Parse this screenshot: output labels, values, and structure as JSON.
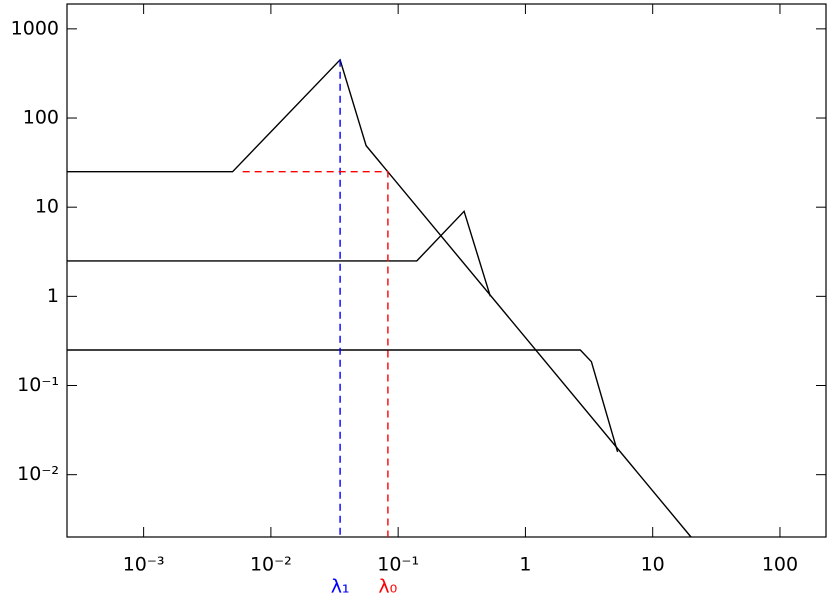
{
  "chart_data": {
    "type": "line",
    "xlog": true,
    "ylog": true,
    "xlim": [
      0.00025,
      230
    ],
    "ylim": [
      0.002,
      1900
    ],
    "xticks": [
      {
        "value": 0.001,
        "label": "10⁻³"
      },
      {
        "value": 0.01,
        "label": "10⁻²"
      },
      {
        "value": 0.1,
        "label": "10⁻¹"
      },
      1,
      10,
      100
    ],
    "yticks": [
      {
        "value": 0.01,
        "label": "10⁻²"
      },
      {
        "value": 0.1,
        "label": "10⁻¹"
      },
      1,
      10,
      100,
      1000
    ],
    "series": [
      {
        "color": "#000000",
        "dash": false,
        "x": [
          0.00025,
          0.005,
          0.035,
          0.056,
          20
        ],
        "values": [
          25,
          25,
          450,
          49,
          0.002
        ]
      },
      {
        "color": "#000000",
        "dash": false,
        "x": [
          0.00025,
          0.14,
          0.33,
          0.53
        ],
        "values": [
          2.5,
          2.5,
          9,
          1
        ]
      },
      {
        "color": "#000000",
        "dash": false,
        "x": [
          0.00025,
          2.7,
          3.3,
          5.3
        ],
        "values": [
          0.25,
          0.25,
          0.185,
          0.018
        ]
      },
      {
        "color": "#0000ff",
        "dash": true,
        "x": [
          0.035,
          0.035
        ],
        "values": [
          450,
          0.002
        ]
      },
      {
        "color": "#ff0000",
        "dash": true,
        "x": [
          0.006,
          0.083,
          0.083
        ],
        "values": [
          25,
          25,
          0.002
        ]
      }
    ],
    "annotations": [
      {
        "text": "λ₁",
        "x": 0.035,
        "color": "#0000ff"
      },
      {
        "text": "λ₀",
        "x": 0.083,
        "color": "#ff0000"
      }
    ]
  }
}
